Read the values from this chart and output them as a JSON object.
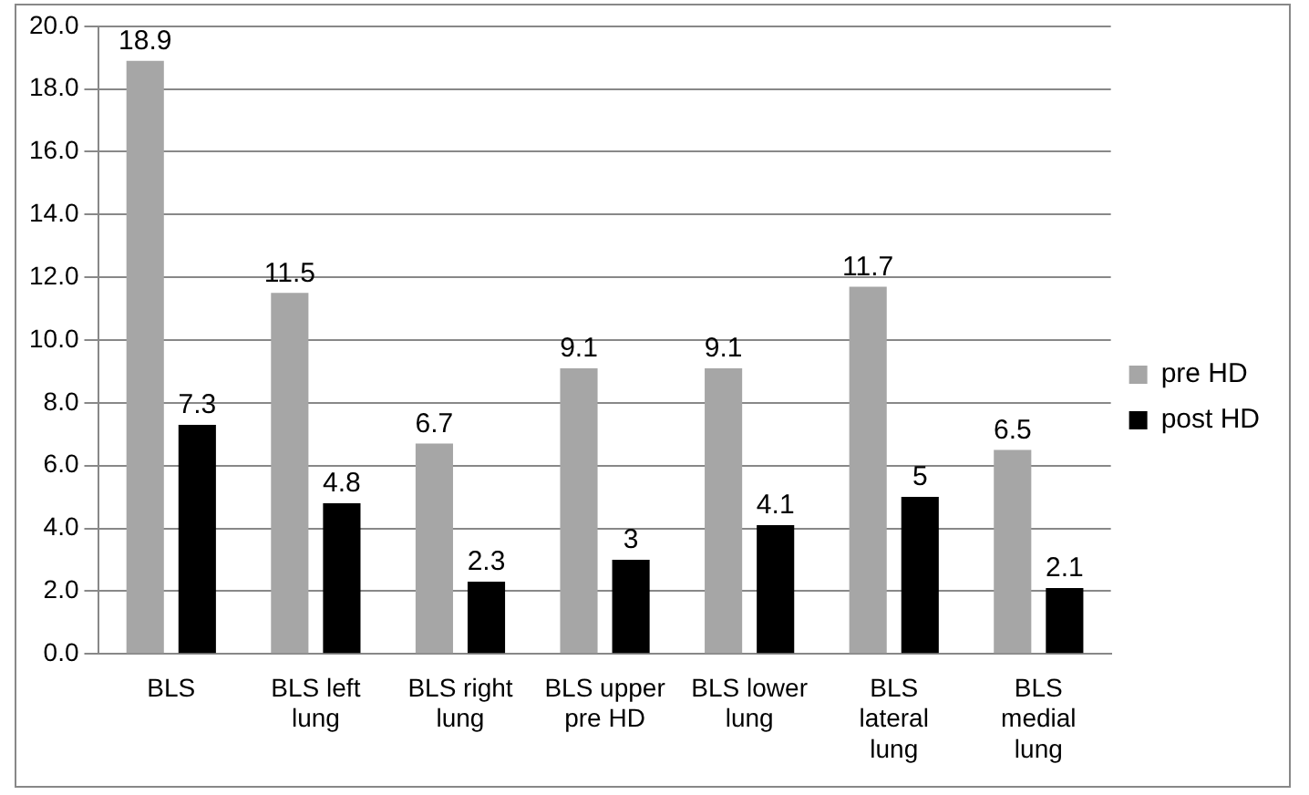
{
  "chart_data": {
    "type": "bar",
    "categories": [
      "BLS",
      "BLS left lung",
      "BLS right lung",
      "BLS upper pre HD",
      "BLS lower lung",
      "BLS lateral lung",
      "BLS medial lung"
    ],
    "series": [
      {
        "name": "pre HD",
        "color": "#a6a6a6",
        "values": [
          18.9,
          11.5,
          6.7,
          9.1,
          9.1,
          11.7,
          6.5
        ]
      },
      {
        "name": "post HD",
        "color": "#000000",
        "values": [
          7.3,
          4.8,
          2.3,
          3,
          4.1,
          5,
          2.1
        ]
      }
    ],
    "ylim": [
      0,
      20
    ],
    "yticks": [
      {
        "value": 0,
        "label": "0.0"
      },
      {
        "value": 2,
        "label": "2.0"
      },
      {
        "value": 4,
        "label": "4.0"
      },
      {
        "value": 6,
        "label": "6.0"
      },
      {
        "value": 8,
        "label": "8.0"
      },
      {
        "value": 10,
        "label": "10.0"
      },
      {
        "value": 12,
        "label": "12.0"
      },
      {
        "value": 14,
        "label": "14.0"
      },
      {
        "value": 16,
        "label": "16.0"
      },
      {
        "value": 18,
        "label": "18.0"
      },
      {
        "value": 20,
        "label": "20.0"
      }
    ],
    "grid": "y",
    "legend": "right",
    "data_labels": true
  }
}
